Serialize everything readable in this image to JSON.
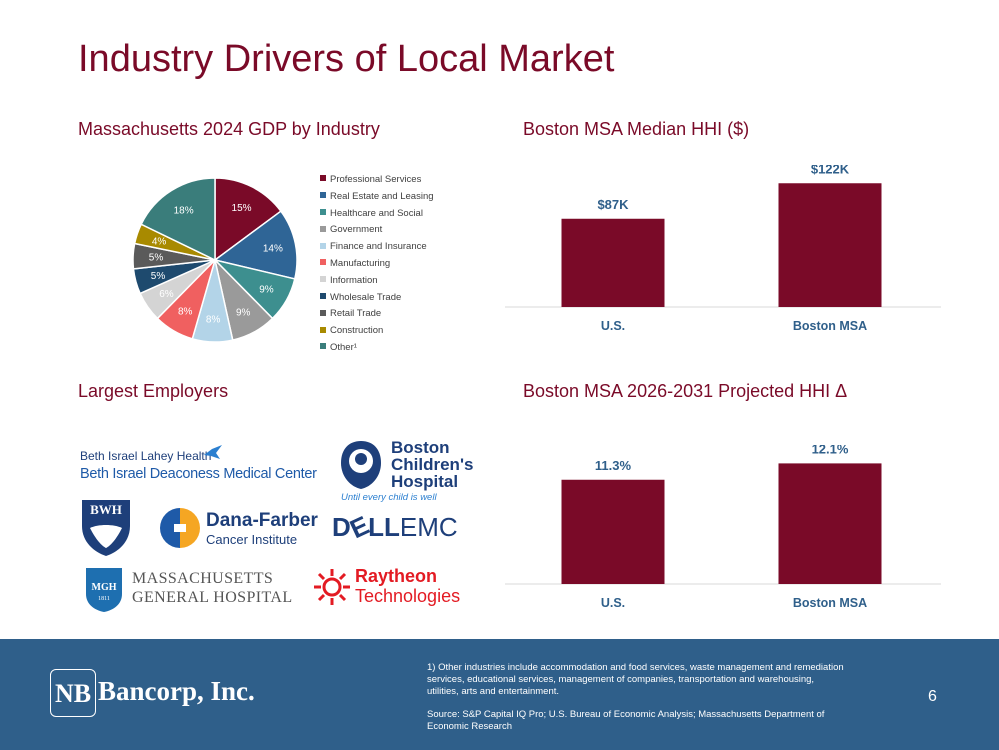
{
  "title": "Industry Drivers of Local Market",
  "sections": {
    "gdp": "Massachusetts 2024 GDP by Industry",
    "hhi": "Boston MSA Median HHI ($)",
    "employers": "Largest Employers",
    "proj": "Boston MSA 2026-2031 Projected HHI Δ"
  },
  "chart_data": [
    {
      "type": "pie",
      "title": "Massachusetts 2024 GDP by Industry",
      "categories": [
        "Professional Services",
        "Real Estate and Leasing",
        "Healthcare and Social",
        "Government",
        "Finance and Insurance",
        "Manufacturing",
        "Information",
        "Wholesale Trade",
        "Retail Trade",
        "Construction",
        "Other¹"
      ],
      "values": [
        15,
        14,
        9,
        9,
        8,
        8,
        6,
        5,
        5,
        4,
        18
      ],
      "labels": [
        "15%",
        "14%",
        "9%",
        "9%",
        "8%",
        "8%",
        "6%",
        "5%",
        "5%",
        "4%",
        "18%"
      ],
      "colors": [
        "#7a0a28",
        "#2f6596",
        "#3d8f8f",
        "#9a9a9a",
        "#b3d4e8",
        "#f06060",
        "#d4d4d4",
        "#1e4a6e",
        "#5a5a5a",
        "#a88a00",
        "#3a7d7b"
      ],
      "legend_position": "right"
    },
    {
      "type": "bar",
      "title": "Boston MSA Median HHI ($)",
      "categories": [
        "U.S.",
        "Boston MSA"
      ],
      "values": [
        87,
        122
      ],
      "data_labels": [
        "$87K",
        "$122K"
      ],
      "ylim": [
        0,
        140
      ],
      "color": "#7a0a28"
    },
    {
      "type": "bar",
      "title": "Boston MSA 2026-2031 Projected HHI Δ",
      "categories": [
        "U.S.",
        "Boston MSA"
      ],
      "values": [
        11.3,
        12.1
      ],
      "data_labels": [
        "11.3%",
        "12.1%"
      ],
      "ylim": [
        6.2,
        13.0
      ],
      "color": "#7a0a28"
    }
  ],
  "employers": {
    "bilh_line1": "Beth Israel Lahey Health",
    "bilh_line2": "Beth Israel Deaconess Medical Center",
    "bch_line1": "Boston",
    "bch_line2": "Children's",
    "bch_line3": "Hospital",
    "bch_tagline": "Until every child is well",
    "bwh": "BWH",
    "df_line1": "Dana-Farber",
    "df_line2": "Cancer Institute",
    "dell_a": "D",
    "dell_b": "LL",
    "dell_c": "EMC",
    "mgh_badge": "MGH",
    "mgh_year": "1811",
    "mgh_line1": "MASSACHUSETTS",
    "mgh_line2": "GENERAL HOSPITAL",
    "ray_line1": "Raytheon",
    "ray_line2": "Technologies"
  },
  "footer": {
    "brand_mark": "NB",
    "brand_name": "Bancorp, Inc.",
    "note1": "1)    Other industries include accommodation and food services, waste management and remediation services, educational services, management of companies, transportation and warehousing, utilities, arts and entertainment.",
    "source": "Source: S&P Capital IQ Pro; U.S. Bureau of Economic Analysis; Massachusetts Department of Economic Research",
    "page": "6"
  }
}
